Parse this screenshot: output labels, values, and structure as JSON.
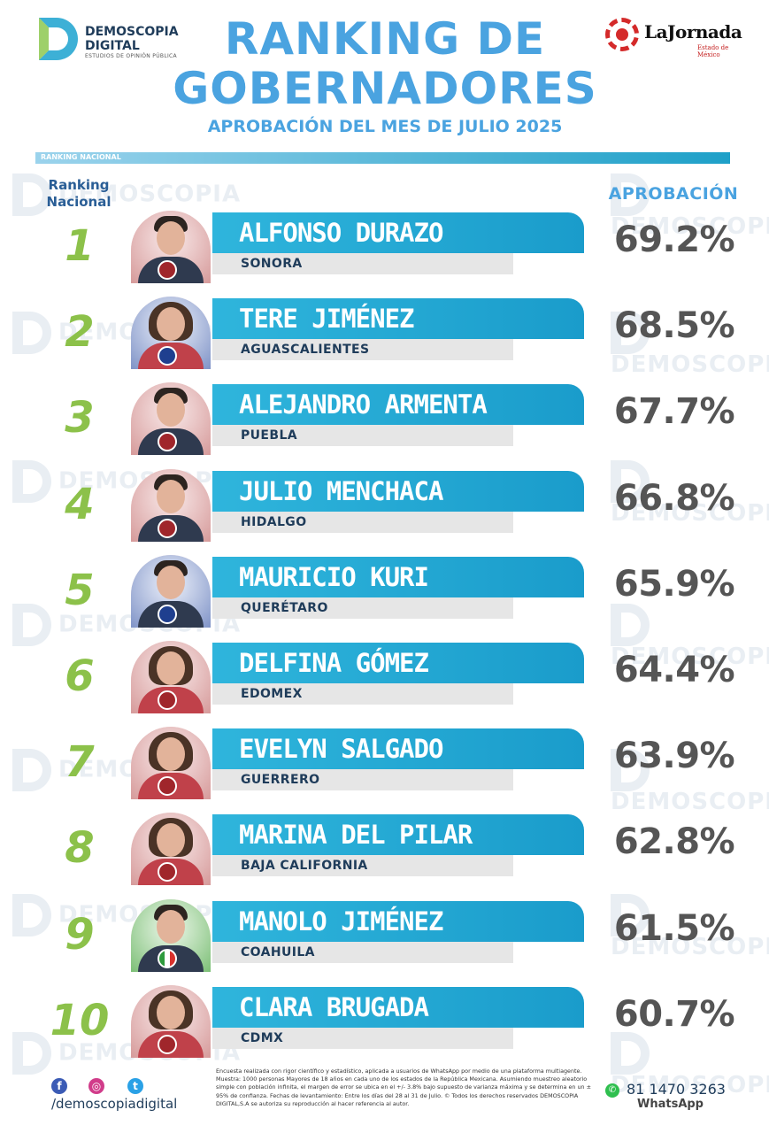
{
  "brand_left": {
    "line1": "DEMOSCOPIA",
    "line2": "DIGITAL",
    "tagline": "ESTUDIOS DE OPINIÓN PÚBLICA"
  },
  "brand_right": {
    "name": "LaJornada",
    "sub": "Estado de México"
  },
  "title": {
    "line1": "RANKING DE",
    "line2": "GOBERNADORES",
    "subtitle": "APROBACIÓN DEL MES DE JULIO 2025"
  },
  "section_label": "RANKING NACIONAL",
  "headers": {
    "rank_line1": "Ranking",
    "rank_line2": "Nacional",
    "approval": "APROBACIÓN"
  },
  "rows": [
    {
      "rank": "1",
      "name": "ALFONSO DURAZO",
      "state": "SONORA",
      "approval": "69.2%",
      "approval_value": 69.2,
      "party": "morena",
      "gender": "m"
    },
    {
      "rank": "2",
      "name": "TERE JIMÉNEZ",
      "state": "AGUASCALIENTES",
      "approval": "68.5%",
      "approval_value": 68.5,
      "party": "pan",
      "gender": "f"
    },
    {
      "rank": "3",
      "name": "ALEJANDRO ARMENTA",
      "state": "PUEBLA",
      "approval": "67.7%",
      "approval_value": 67.7,
      "party": "morena",
      "gender": "m"
    },
    {
      "rank": "4",
      "name": "JULIO MENCHACA",
      "state": "HIDALGO",
      "approval": "66.8%",
      "approval_value": 66.8,
      "party": "morena",
      "gender": "m"
    },
    {
      "rank": "5",
      "name": "MAURICIO KURI",
      "state": "QUERÉTARO",
      "approval": "65.9%",
      "approval_value": 65.9,
      "party": "pan",
      "gender": "m"
    },
    {
      "rank": "6",
      "name": "DELFINA GÓMEZ",
      "state": "EDOMEX",
      "approval": "64.4%",
      "approval_value": 64.4,
      "party": "morena",
      "gender": "f"
    },
    {
      "rank": "7",
      "name": "EVELYN SALGADO",
      "state": "GUERRERO",
      "approval": "63.9%",
      "approval_value": 63.9,
      "party": "morena",
      "gender": "f"
    },
    {
      "rank": "8",
      "name": "MARINA DEL PILAR",
      "state": "BAJA CALIFORNIA",
      "approval": "62.8%",
      "approval_value": 62.8,
      "party": "morena",
      "gender": "f"
    },
    {
      "rank": "9",
      "name": "MANOLO JIMÉNEZ",
      "state": "COAHUILA",
      "approval": "61.5%",
      "approval_value": 61.5,
      "party": "pri",
      "gender": "m"
    },
    {
      "rank": "10",
      "name": "CLARA BRUGADA",
      "state": "CDMX",
      "approval": "60.7%",
      "approval_value": 60.7,
      "party": "morena",
      "gender": "f"
    }
  ],
  "watermark": {
    "line1": "DEMOSCOPIA",
    "line2": "DIGITAL"
  },
  "footer": {
    "social_icons": [
      "facebook-icon",
      "instagram-icon",
      "twitter-icon"
    ],
    "handle": "/demoscopiadigital",
    "disclaimer": "Encuesta realizada con rigor científico y estadístico, aplicada a usuarios de WhatsApp por medio de una plataforma multiagente. Muestra: 1000 personas Mayores de 18 años en cada uno de los estados de la República Mexicana. Asumiendo muestreo aleatorio simple con población infinita, el margen de error se ubica en el +/- 3.8% bajo supuesto de varianza máxima y se determina en un ± 95% de confianza. Fechas de levantamiento: Entre los días del 28 al 31 de Julio. © Todos los derechos reservados DEMOSCOPIA DIGITAL,S.A se autoriza su reproducción al hacer referencia al autor.",
    "phone": "81 1470 3263",
    "phone_label": "WhatsApp"
  },
  "colors": {
    "accent": "#4aa3e0",
    "bar": "#1ea0c8",
    "rank_green": "#8cc14a",
    "state_bar": "#e6e6e6"
  }
}
